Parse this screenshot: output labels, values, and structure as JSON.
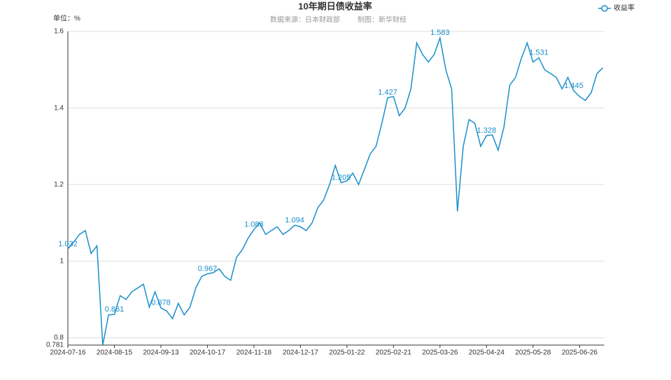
{
  "chart_data": {
    "type": "line",
    "title": "10年期日债收益率",
    "source": "数据来源：日本财政部",
    "credit": "制图：新华财经",
    "y_label": "单位：%",
    "legend_position": "top-right",
    "grid": true,
    "ylim": [
      0.781,
      1.6
    ],
    "yticks": [
      0.781,
      0.8,
      1,
      1.2,
      1.4,
      1.6
    ],
    "categories": [
      "2024-07-16",
      null,
      null,
      null,
      null,
      null,
      null,
      null,
      "2024-08-15",
      null,
      null,
      null,
      null,
      null,
      null,
      null,
      "2024-09-13",
      null,
      null,
      null,
      null,
      null,
      null,
      null,
      "2024-10-17",
      null,
      null,
      null,
      null,
      null,
      null,
      null,
      "2024-11-18",
      null,
      null,
      null,
      null,
      null,
      null,
      null,
      "2024-12-17",
      null,
      null,
      null,
      null,
      null,
      null,
      null,
      "2025-01-22",
      null,
      null,
      null,
      null,
      null,
      null,
      null,
      "2025-02-21",
      null,
      null,
      null,
      null,
      null,
      null,
      null,
      "2025-03-26",
      null,
      null,
      null,
      null,
      null,
      null,
      null,
      "2025-04-24",
      null,
      null,
      null,
      null,
      null,
      null,
      null,
      "2025-05-28",
      null,
      null,
      null,
      null,
      null,
      null,
      null,
      "2025-06-26",
      null,
      null,
      null,
      null
    ],
    "series": [
      {
        "name": "收益率",
        "color": "#1a8fcc",
        "values": [
          1.032,
          1.05,
          1.07,
          1.08,
          1.02,
          1.04,
          0.781,
          0.86,
          0.861,
          0.91,
          0.9,
          0.92,
          0.93,
          0.94,
          0.88,
          0.92,
          0.878,
          0.87,
          0.85,
          0.89,
          0.86,
          0.88,
          0.93,
          0.96,
          0.967,
          0.97,
          0.98,
          0.96,
          0.95,
          1.01,
          1.03,
          1.06,
          1.083,
          1.1,
          1.07,
          1.08,
          1.09,
          1.07,
          1.08,
          1.094,
          1.09,
          1.08,
          1.1,
          1.14,
          1.16,
          1.2,
          1.25,
          1.205,
          1.21,
          1.23,
          1.2,
          1.24,
          1.28,
          1.3,
          1.36,
          1.427,
          1.43,
          1.38,
          1.4,
          1.45,
          1.57,
          1.54,
          1.52,
          1.54,
          1.583,
          1.5,
          1.45,
          1.13,
          1.3,
          1.37,
          1.36,
          1.3,
          1.328,
          1.33,
          1.29,
          1.35,
          1.46,
          1.48,
          1.53,
          1.57,
          1.52,
          1.531,
          1.5,
          1.49,
          1.48,
          1.45,
          1.48,
          1.445,
          1.43,
          1.42,
          1.44,
          1.49,
          1.505
        ],
        "value_labels": [
          "1.032",
          null,
          null,
          null,
          null,
          null,
          null,
          null,
          "0.861",
          null,
          null,
          null,
          null,
          null,
          null,
          null,
          "0.878",
          null,
          null,
          null,
          null,
          null,
          null,
          null,
          "0.967",
          null,
          null,
          null,
          null,
          null,
          null,
          null,
          "1.083",
          null,
          null,
          null,
          null,
          null,
          null,
          "1.094",
          null,
          null,
          null,
          null,
          null,
          null,
          null,
          "1.205",
          null,
          null,
          null,
          null,
          null,
          null,
          null,
          "1.427",
          null,
          null,
          null,
          null,
          null,
          null,
          null,
          null,
          "1.583",
          null,
          null,
          null,
          null,
          null,
          null,
          null,
          "1.328",
          null,
          null,
          null,
          null,
          null,
          null,
          null,
          null,
          "1.531",
          null,
          null,
          null,
          null,
          null,
          "1.445",
          null,
          null,
          null,
          null,
          null
        ]
      }
    ]
  }
}
